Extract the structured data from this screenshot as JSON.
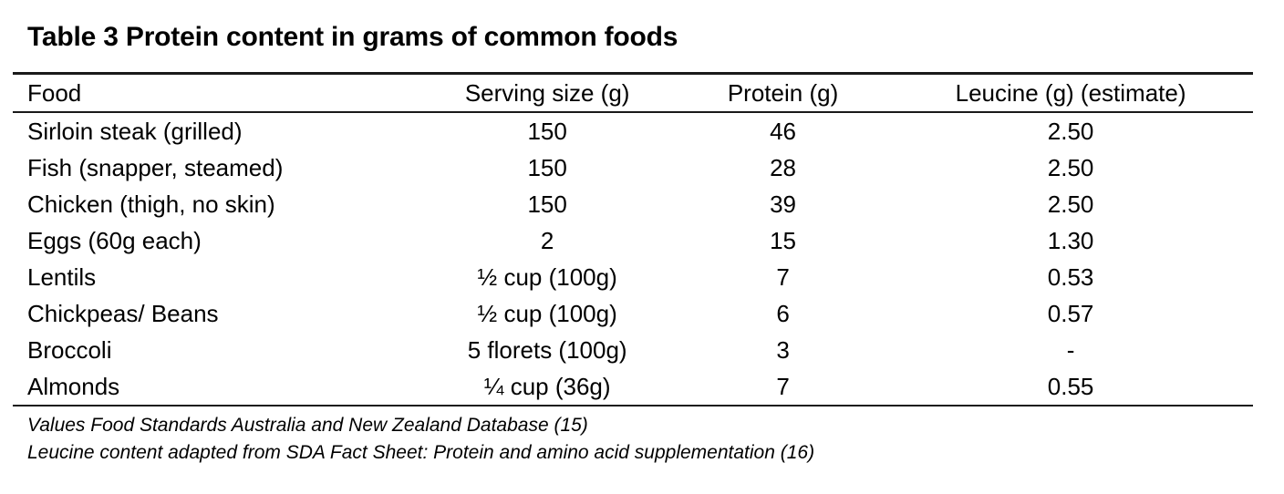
{
  "title": "Table 3 Protein content in grams of common foods",
  "table": {
    "columns": [
      "Food",
      "Serving size (g)",
      "Protein (g)",
      "Leucine (g) (estimate)"
    ],
    "rows": [
      [
        "Sirloin steak (grilled)",
        "150",
        "46",
        "2.50"
      ],
      [
        "Fish (snapper, steamed)",
        "150",
        "28",
        "2.50"
      ],
      [
        "Chicken (thigh, no skin)",
        "150",
        "39",
        "2.50"
      ],
      [
        "Eggs (60g each)",
        "2",
        "15",
        "1.30"
      ],
      [
        "Lentils",
        "½ cup (100g)",
        "7",
        "0.53"
      ],
      [
        "Chickpeas/ Beans",
        "½ cup (100g)",
        "6",
        "0.57"
      ],
      [
        "Broccoli",
        "5 florets (100g)",
        "3",
        "-"
      ],
      [
        "Almonds",
        "¼ cup (36g)",
        "7",
        "0.55"
      ]
    ]
  },
  "footnotes": [
    "Values Food Standards Australia and New Zealand Database (15)",
    "Leucine content adapted from SDA Fact Sheet: Protein and amino acid supplementation (16)"
  ],
  "colors": {
    "background": "#ffffff",
    "text": "#000000",
    "rule": "#1a1a1a"
  }
}
